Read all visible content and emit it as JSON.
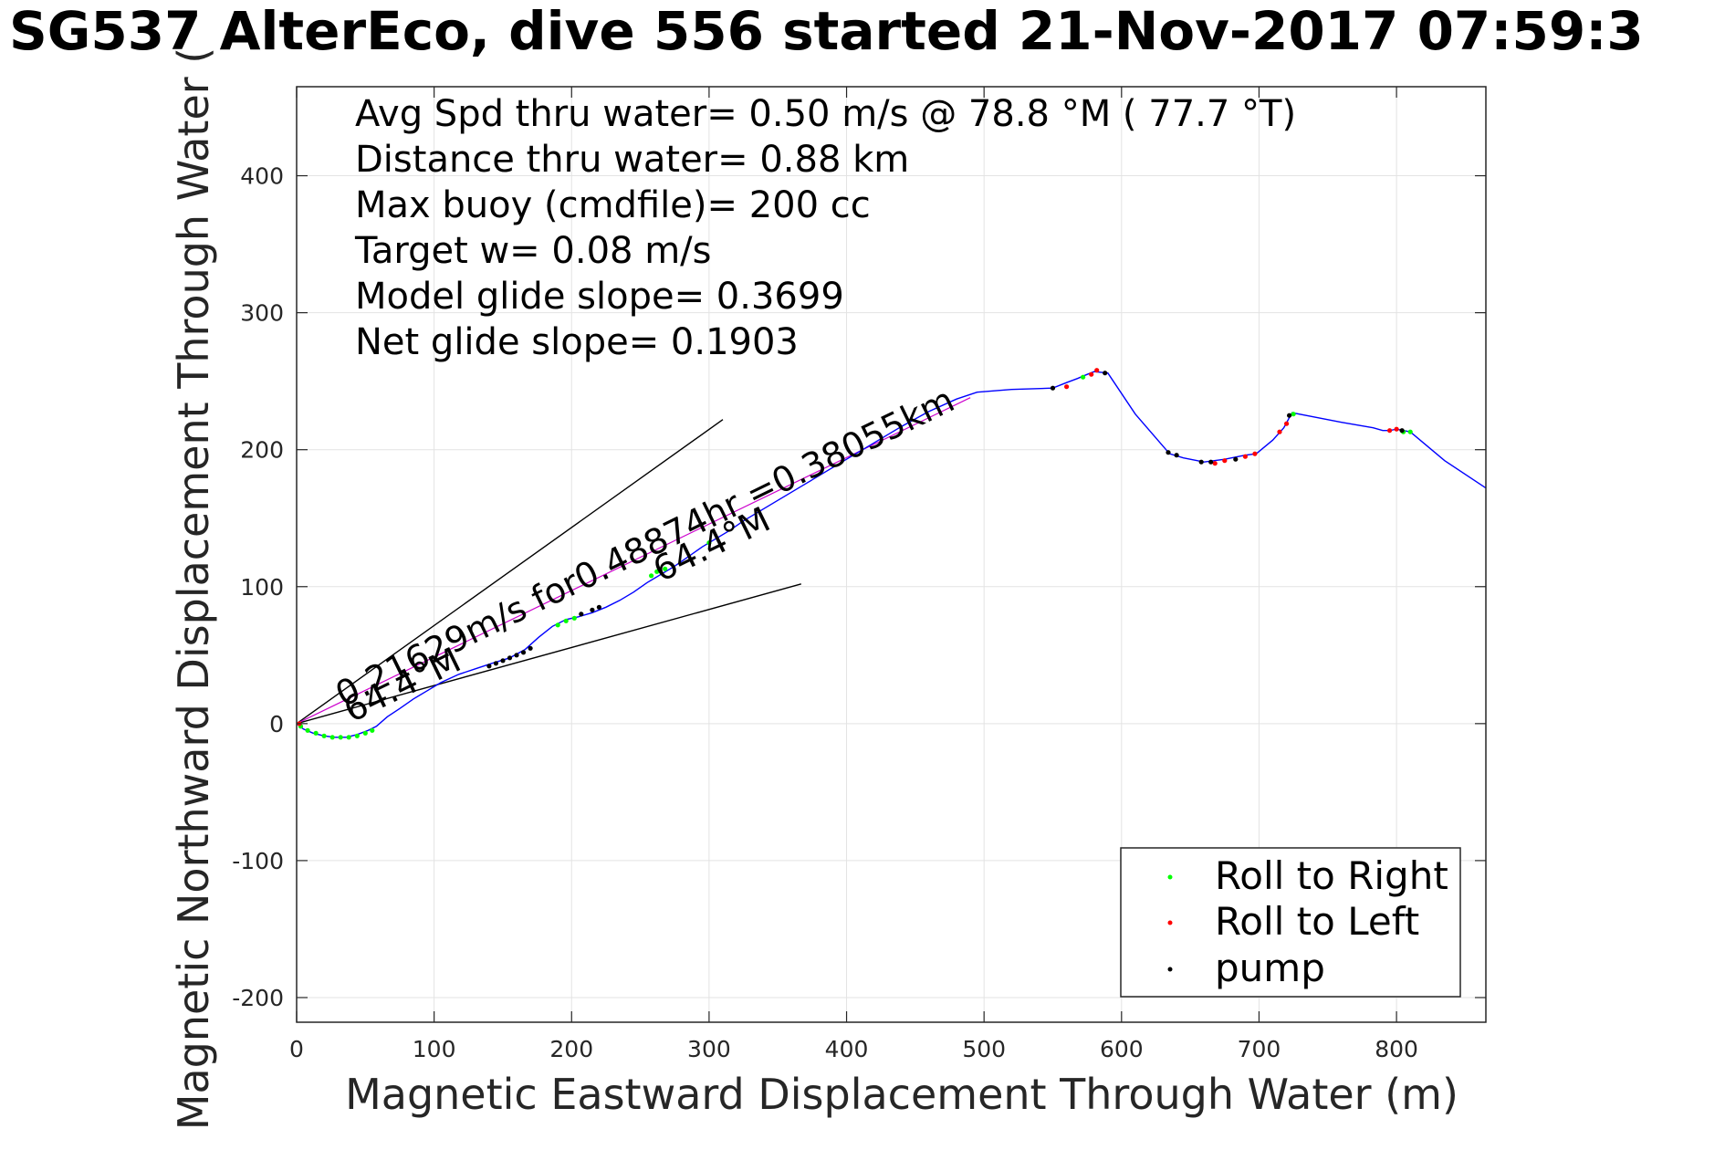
{
  "chart_data": {
    "type": "line",
    "title": "SG537 AlterEco, dive 556 started 21-Nov-2017 07:59:3",
    "xlabel": "Magnetic Eastward Displacement Through Water (m)",
    "ylabel": "Magnetic Northward Displacement Through Water (",
    "xlim": [
      0,
      865
    ],
    "ylim": [
      -218,
      465
    ],
    "xticks": [
      0,
      100,
      200,
      300,
      400,
      500,
      600,
      700,
      800
    ],
    "yticks": [
      -200,
      -100,
      0,
      100,
      200,
      300,
      400
    ],
    "grid": true,
    "stats": [
      "Avg Spd thru water=  0.50 m/s @  78.8 °M ( 77.7 °T)",
      "Distance thru water=  0.88 km",
      "Max buoy (cmdfile)= 200 cc",
      "Target w= 0.08 m/s",
      "Model glide slope= 0.3699",
      "Net glide slope= 0.1903"
    ],
    "annotations": {
      "speed_text": "0.21629m/s for0.48874hr =0.38055km",
      "heading_text_1": "64.4°M",
      "heading_text_2": "64.4°M"
    },
    "legend": {
      "placement": "bottom-right",
      "entries": [
        {
          "label": "Roll to Right",
          "color": "#00ff00"
        },
        {
          "label": "Roll to Left",
          "color": "#ff0000"
        },
        {
          "label": "pump",
          "color": "#000000"
        }
      ]
    },
    "track": {
      "color": "#0000ff",
      "x": [
        0,
        5,
        12,
        20,
        28,
        36,
        44,
        52,
        58,
        66,
        75,
        85,
        95,
        105,
        118,
        130,
        142,
        155,
        166,
        176,
        186,
        196,
        205,
        215,
        225,
        235,
        245,
        255,
        265,
        275,
        285,
        295,
        305,
        315,
        325,
        340,
        355,
        370,
        385,
        400,
        420,
        440,
        460,
        480,
        495,
        520,
        550,
        560,
        568,
        575,
        580,
        590,
        610,
        635,
        645,
        660,
        675,
        690,
        698,
        710,
        718,
        724,
        760,
        783,
        790,
        795,
        800,
        810,
        835,
        865
      ],
      "y": [
        0,
        -4,
        -7,
        -9,
        -10,
        -10,
        -8,
        -5,
        -2,
        5,
        11,
        18,
        24,
        30,
        36,
        40,
        44,
        48,
        54,
        63,
        71,
        76,
        78,
        81,
        85,
        90,
        96,
        103,
        109,
        115,
        122,
        129,
        135,
        141,
        148,
        157,
        166,
        175,
        184,
        193,
        205,
        217,
        228,
        237,
        242,
        244,
        245,
        249,
        252,
        255,
        257,
        256,
        226,
        197,
        194,
        191,
        193,
        196,
        197,
        207,
        216,
        227,
        220,
        216,
        214,
        214,
        215,
        213,
        192,
        172
      ]
    },
    "model_path": {
      "color": "#cc00cc",
      "x": [
        0,
        490
      ],
      "y": [
        0,
        238
      ]
    },
    "heading_lines": [
      {
        "color": "#000000",
        "x": [
          0,
          310
        ],
        "y": [
          0,
          222
        ]
      },
      {
        "color": "#000000",
        "x": [
          0,
          367
        ],
        "y": [
          0,
          102
        ]
      }
    ],
    "roll_right_points": {
      "color": "#00ff00",
      "x": [
        3,
        8,
        14,
        20,
        26,
        32,
        38,
        44,
        50,
        55,
        190,
        196,
        202,
        258,
        262,
        268,
        300,
        572,
        805,
        810,
        725
      ],
      "y": [
        -2,
        -5,
        -7,
        -9,
        -10,
        -10,
        -10,
        -9,
        -7,
        -5,
        72,
        75,
        77,
        108,
        111,
        113,
        132,
        253,
        213,
        213,
        226
      ]
    },
    "roll_left_points": {
      "color": "#ff0000",
      "x": [
        2,
        560,
        578,
        582,
        668,
        675,
        690,
        697,
        715,
        720,
        795,
        800
      ],
      "y": [
        0,
        246,
        255,
        258,
        190,
        192,
        195,
        197,
        213,
        219,
        214,
        215
      ]
    },
    "pump_points": {
      "color": "#000000",
      "x": [
        140,
        145,
        150,
        155,
        160,
        165,
        170,
        207,
        215,
        220,
        550,
        588,
        634,
        640,
        658,
        665,
        683,
        722,
        804
      ],
      "y": [
        42,
        44,
        46,
        48,
        50,
        52,
        55,
        80,
        83,
        85,
        245,
        256,
        198,
        196,
        191,
        191,
        193,
        225,
        214
      ]
    }
  }
}
